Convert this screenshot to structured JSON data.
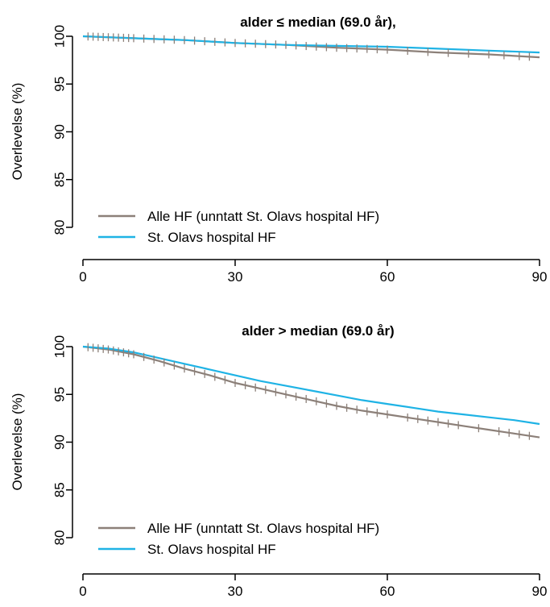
{
  "chart_data": [
    {
      "type": "line",
      "title": "alder ≤ median (69.0 år),",
      "ylabel": "Overlevelse (%)",
      "xlabel": "",
      "xlim": [
        0,
        90
      ],
      "ylim": [
        80,
        100
      ],
      "xticks": [
        "0",
        "30",
        "60",
        "90"
      ],
      "yticks": [
        "80",
        "85",
        "90",
        "95",
        "100"
      ],
      "legend_position": "bottom-left",
      "series": [
        {
          "name": "Alle HF (unntatt St. Olavs hospital HF)",
          "color": "#8c8079",
          "x": [
            0,
            5,
            10,
            15,
            20,
            30,
            40,
            50,
            60,
            70,
            80,
            90
          ],
          "y": [
            100,
            99.9,
            99.8,
            99.7,
            99.6,
            99.3,
            99.1,
            98.8,
            98.6,
            98.3,
            98.1,
            97.8
          ],
          "censor_x": [
            1,
            2,
            3,
            4,
            5,
            6,
            7,
            8,
            9,
            10,
            12,
            14,
            16,
            18,
            20,
            22,
            24,
            26,
            28,
            30,
            32,
            34,
            36,
            38,
            40,
            42,
            44,
            46,
            48,
            50,
            52,
            54,
            56,
            58,
            60,
            64,
            68,
            72,
            76,
            80,
            83,
            86,
            88
          ]
        },
        {
          "name": "St. Olavs hospital HF",
          "color": "#1fb3e5",
          "x": [
            0,
            10,
            20,
            30,
            40,
            50,
            60,
            70,
            80,
            90
          ],
          "y": [
            100,
            99.8,
            99.6,
            99.3,
            99.1,
            99.0,
            98.9,
            98.7,
            98.5,
            98.3
          ],
          "censor_x": []
        }
      ]
    },
    {
      "type": "line",
      "title": "alder > median (69.0 år)",
      "ylabel": "Overlevelse (%)",
      "xlabel": "",
      "xlim": [
        0,
        90
      ],
      "ylim": [
        80,
        100
      ],
      "xticks": [
        "0",
        "30",
        "60",
        "90"
      ],
      "yticks": [
        "80",
        "85",
        "90",
        "95",
        "100"
      ],
      "legend_position": "bottom-left",
      "series": [
        {
          "name": "Alle HF (unntatt St. Olavs hospital HF)",
          "color": "#8c8079",
          "x": [
            0,
            5,
            10,
            15,
            20,
            25,
            30,
            35,
            40,
            45,
            50,
            55,
            60,
            65,
            70,
            75,
            80,
            85,
            90
          ],
          "y": [
            100,
            99.7,
            99.2,
            98.5,
            97.7,
            97.0,
            96.2,
            95.6,
            95.0,
            94.4,
            93.8,
            93.3,
            92.9,
            92.5,
            92.1,
            91.7,
            91.3,
            90.9,
            90.5
          ],
          "censor_x": [
            1,
            2,
            3,
            4,
            5,
            6,
            7,
            8,
            9,
            10,
            12,
            14,
            16,
            18,
            20,
            22,
            24,
            26,
            28,
            30,
            32,
            34,
            36,
            38,
            40,
            42,
            44,
            46,
            48,
            50,
            52,
            54,
            56,
            58,
            60,
            64,
            66,
            68,
            70,
            72,
            74,
            78,
            82,
            84,
            86,
            88
          ]
        },
        {
          "name": "St. Olavs hospital HF",
          "color": "#1fb3e5",
          "x": [
            0,
            5,
            10,
            15,
            20,
            25,
            30,
            35,
            40,
            45,
            50,
            55,
            60,
            65,
            70,
            75,
            80,
            85,
            90
          ],
          "y": [
            100,
            99.8,
            99.4,
            98.8,
            98.2,
            97.6,
            97.0,
            96.4,
            95.9,
            95.4,
            94.9,
            94.4,
            94.0,
            93.6,
            93.2,
            92.9,
            92.6,
            92.3,
            91.9
          ],
          "censor_x": []
        }
      ]
    }
  ]
}
